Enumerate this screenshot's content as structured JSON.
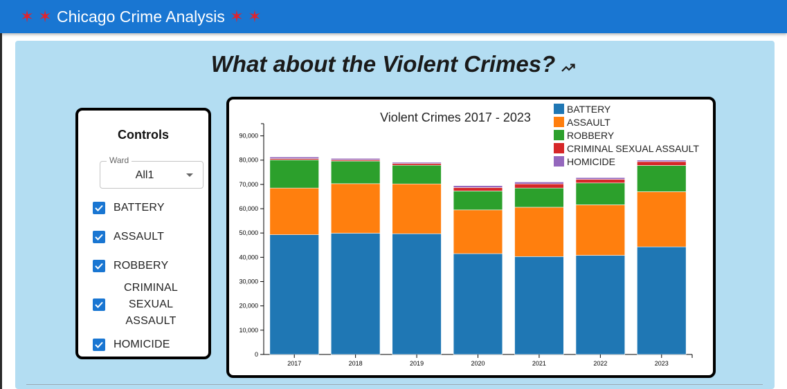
{
  "app": {
    "title": "Chicago Crime Analysis",
    "star_glyph": "✶",
    "accent_color": "#1976d2",
    "star_color": "#e3222b"
  },
  "section": {
    "heading": "What about the Violent Crimes?",
    "heading_icon": "trending-up-icon"
  },
  "controls": {
    "title": "Controls",
    "ward": {
      "label": "Ward",
      "value": "All1"
    },
    "checkboxes": [
      {
        "label": "BATTERY",
        "checked": true
      },
      {
        "label": "ASSAULT",
        "checked": true
      },
      {
        "label": "ROBBERY",
        "checked": true
      },
      {
        "label": "CRIMINAL SEXUAL ASSAULT",
        "checked": true
      },
      {
        "label": "HOMICIDE",
        "checked": true
      }
    ]
  },
  "chart_data": {
    "type": "bar",
    "stacked": true,
    "title": "Violent Crimes 2017 - 2023",
    "xlabel": "",
    "ylabel": "",
    "categories": [
      "2017",
      "2018",
      "2019",
      "2020",
      "2021",
      "2022",
      "2023"
    ],
    "ylim": [
      0,
      95000
    ],
    "yticks": [
      "0",
      "10,000",
      "20,000",
      "30,000",
      "40,000",
      "50,000",
      "60,000",
      "70,000",
      "80,000",
      "90,000"
    ],
    "legend_position": "top-right",
    "series": [
      {
        "name": "BATTERY",
        "color": "#1f77b4",
        "values": [
          49300,
          49900,
          49700,
          41500,
          40300,
          40800,
          44300
        ]
      },
      {
        "name": "ASSAULT",
        "color": "#ff7f0e",
        "values": [
          19200,
          20400,
          20500,
          18000,
          20300,
          20800,
          22700
        ]
      },
      {
        "name": "ROBBERY",
        "color": "#2ca02c",
        "values": [
          11600,
          9300,
          7700,
          7800,
          7900,
          9000,
          10800
        ]
      },
      {
        "name": "CRIMINAL SEXUAL ASSAULT",
        "color": "#d62728",
        "values": [
          500,
          500,
          700,
          1400,
          1700,
          1500,
          1600
        ]
      },
      {
        "name": "HOMICIDE",
        "color": "#9467bd",
        "values": [
          700,
          600,
          500,
          800,
          800,
          700,
          600
        ]
      }
    ]
  }
}
